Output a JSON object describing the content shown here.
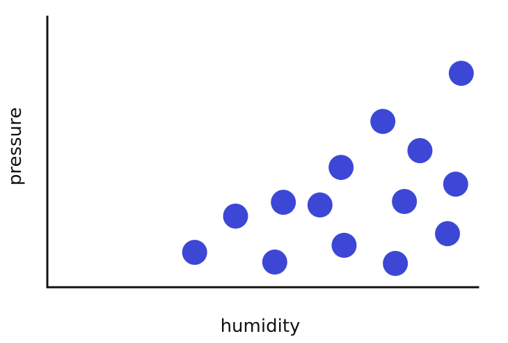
{
  "chart_data": {
    "type": "scatter",
    "xlabel": "humidity",
    "ylabel": "pressure",
    "grid": false,
    "xlim": [
      0,
      100
    ],
    "ylim": [
      0,
      100
    ],
    "series": [
      {
        "color": "#3d47d6",
        "points": [
          {
            "x": 34.2,
            "y": 12.9
          },
          {
            "x": 43.7,
            "y": 26.3
          },
          {
            "x": 52.8,
            "y": 9.3
          },
          {
            "x": 54.8,
            "y": 31.4
          },
          {
            "x": 63.3,
            "y": 30.4
          },
          {
            "x": 68.2,
            "y": 44.3
          },
          {
            "x": 68.9,
            "y": 15.5
          },
          {
            "x": 77.9,
            "y": 61.3
          },
          {
            "x": 80.8,
            "y": 8.8
          },
          {
            "x": 82.9,
            "y": 31.7
          },
          {
            "x": 86.5,
            "y": 50.5
          },
          {
            "x": 92.9,
            "y": 19.8
          },
          {
            "x": 94.8,
            "y": 38.1
          },
          {
            "x": 96.1,
            "y": 79.1
          }
        ]
      }
    ]
  }
}
